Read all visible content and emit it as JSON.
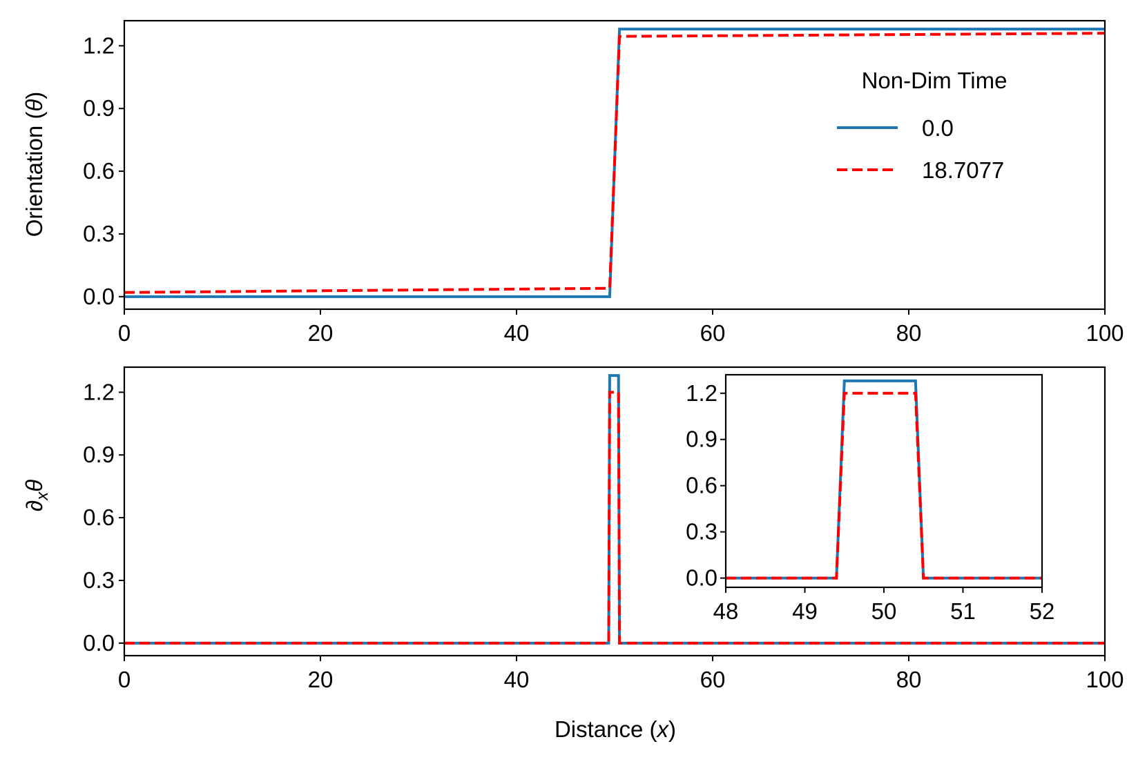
{
  "chart_data": [
    {
      "type": "line",
      "panel": "top",
      "xlabel": "Distance (x)",
      "ylabel": "Orientation (θ)",
      "xlim": [
        0,
        100
      ],
      "ylim": [
        -0.06,
        1.32
      ],
      "xticks": [
        "0",
        "20",
        "40",
        "60",
        "80",
        "100"
      ],
      "yticks": [
        "0.0",
        "0.3",
        "0.6",
        "0.9",
        "1.2"
      ],
      "legend": {
        "title": "Non-Dim Time",
        "placement": "upper-right",
        "entries": [
          "0.0",
          "18.7077"
        ]
      },
      "series": [
        {
          "name": "0.0",
          "color": "#1f77b4",
          "style": "solid",
          "x": [
            0,
            49.5,
            50.5,
            100
          ],
          "y": [
            0.0,
            0.0,
            1.28,
            1.28
          ]
        },
        {
          "name": "18.7077",
          "color": "#ff0000",
          "style": "dashed",
          "x": [
            0,
            49.5,
            50.5,
            100
          ],
          "y": [
            0.02,
            0.04,
            1.245,
            1.26
          ]
        }
      ]
    },
    {
      "type": "line",
      "panel": "bottom",
      "xlabel": "Distance (x)",
      "ylabel": "∂xθ",
      "xlim": [
        0,
        100
      ],
      "ylim": [
        -0.06,
        1.32
      ],
      "xticks": [
        "0",
        "20",
        "40",
        "60",
        "80",
        "100"
      ],
      "yticks": [
        "0.0",
        "0.3",
        "0.6",
        "0.9",
        "1.2"
      ],
      "series": [
        {
          "name": "0.0",
          "color": "#1f77b4",
          "style": "solid",
          "x": [
            0,
            49.4,
            49.5,
            50.4,
            50.5,
            100
          ],
          "y": [
            0,
            0,
            1.28,
            1.28,
            0,
            0
          ]
        },
        {
          "name": "18.7077",
          "color": "#ff0000",
          "style": "dashed",
          "x": [
            0,
            49.4,
            49.5,
            50.4,
            50.5,
            100
          ],
          "y": [
            0,
            0,
            1.2,
            1.2,
            0,
            0
          ]
        }
      ]
    },
    {
      "type": "line",
      "panel": "inset",
      "xlabel": "",
      "ylabel": "",
      "xlim": [
        48,
        52
      ],
      "ylim": [
        -0.06,
        1.32
      ],
      "xticks": [
        "48",
        "49",
        "50",
        "51",
        "52"
      ],
      "yticks": [
        "0.0",
        "0.3",
        "0.6",
        "0.9",
        "1.2"
      ],
      "series": [
        {
          "name": "0.0",
          "color": "#1f77b4",
          "style": "solid",
          "x": [
            48,
            49.4,
            49.5,
            50.4,
            50.5,
            52
          ],
          "y": [
            0,
            0,
            1.28,
            1.28,
            0,
            0
          ]
        },
        {
          "name": "18.7077",
          "color": "#ff0000",
          "style": "dashed",
          "x": [
            48,
            49.4,
            49.5,
            50.4,
            50.5,
            52
          ],
          "y": [
            0,
            0,
            1.2,
            1.2,
            0,
            0
          ]
        }
      ]
    }
  ],
  "labels": {
    "xlabel_prefix": "Distance (",
    "xlabel_var": "x",
    "xlabel_suffix": ")",
    "top_ylabel_prefix": "Orientation (",
    "top_ylabel_var": "θ",
    "top_ylabel_suffix": ")",
    "bottom_ylabel_partial": "∂",
    "bottom_ylabel_sub": "x",
    "bottom_ylabel_var": "θ"
  }
}
